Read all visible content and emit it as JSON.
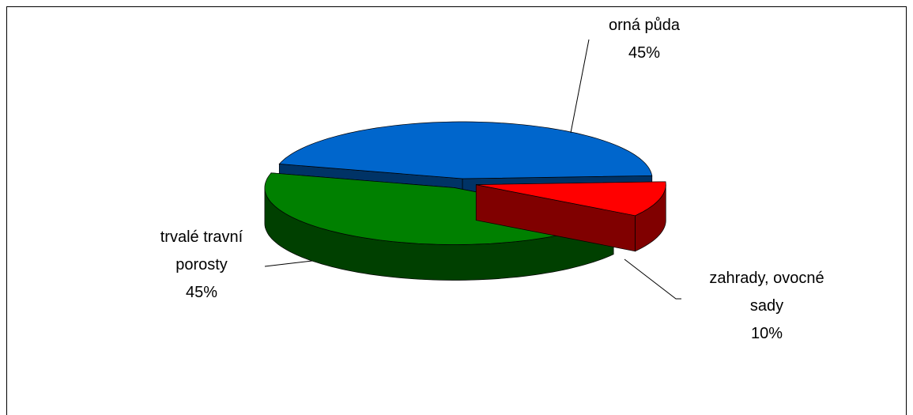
{
  "chart_data": {
    "type": "pie3d",
    "categories": [
      "orná půda",
      "zahrady, ovocné sady",
      "trvalé travní porosty"
    ],
    "values": [
      45,
      10,
      45
    ],
    "value_labels": [
      "45%",
      "10%",
      "45%"
    ],
    "colors": [
      "#0066cc",
      "#ff0000",
      "#008000"
    ],
    "side_colors": [
      "#003366",
      "#800000",
      "#004000"
    ]
  }
}
